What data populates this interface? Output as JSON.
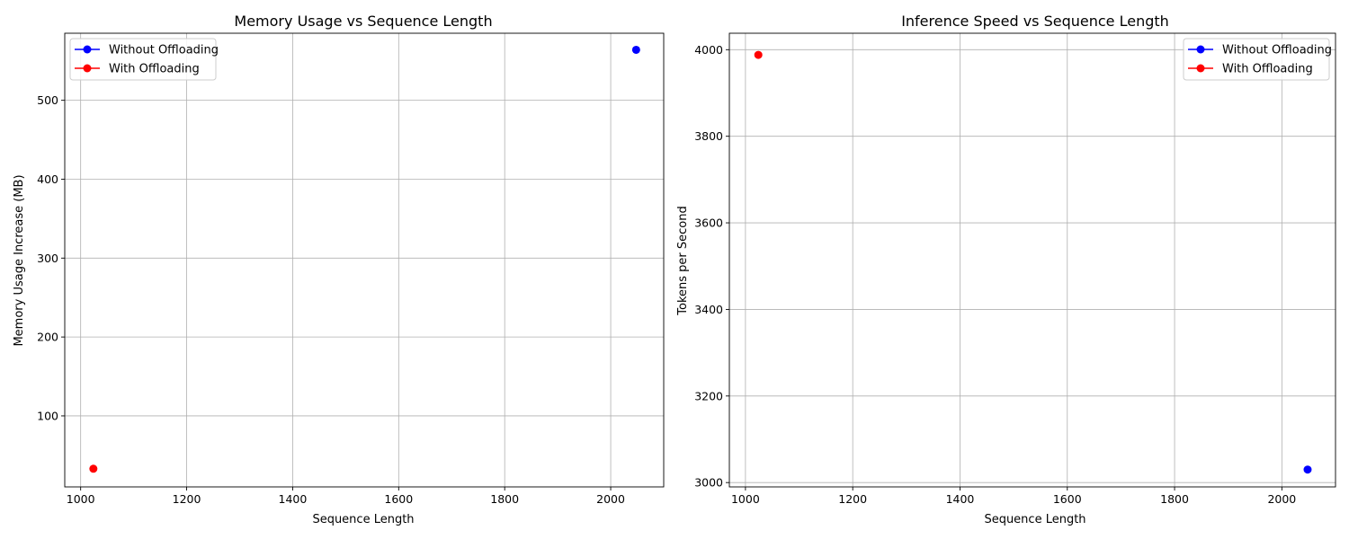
{
  "chart_data": [
    {
      "type": "line",
      "title": "Memory Usage vs Sequence Length",
      "xlabel": "Sequence Length",
      "ylabel": "Memory Usage Increase (MB)",
      "xlim": [
        970,
        2100
      ],
      "ylim": [
        10,
        585
      ],
      "xticks": [
        1000,
        1200,
        1400,
        1600,
        1800,
        2000
      ],
      "yticks": [
        100,
        200,
        300,
        400,
        500
      ],
      "grid": true,
      "legend_position": "upper-left",
      "series": [
        {
          "name": "Without Offloading",
          "color": "#0000ff",
          "x": [
            2048
          ],
          "y": [
            564
          ]
        },
        {
          "name": "With Offloading",
          "color": "#ff0000",
          "x": [
            1024
          ],
          "y": [
            33
          ]
        }
      ]
    },
    {
      "type": "line",
      "title": "Inference Speed vs Sequence Length",
      "xlabel": "Sequence Length",
      "ylabel": "Tokens per Second",
      "xlim": [
        970,
        2100
      ],
      "ylim": [
        2990,
        4038
      ],
      "xticks": [
        1000,
        1200,
        1400,
        1600,
        1800,
        2000
      ],
      "yticks": [
        3000,
        3200,
        3400,
        3600,
        3800,
        4000
      ],
      "grid": true,
      "legend_position": "upper-right",
      "series": [
        {
          "name": "Without Offloading",
          "color": "#0000ff",
          "x": [
            2048
          ],
          "y": [
            3030
          ]
        },
        {
          "name": "With Offloading",
          "color": "#ff0000",
          "x": [
            1024
          ],
          "y": [
            3988
          ]
        }
      ]
    }
  ]
}
